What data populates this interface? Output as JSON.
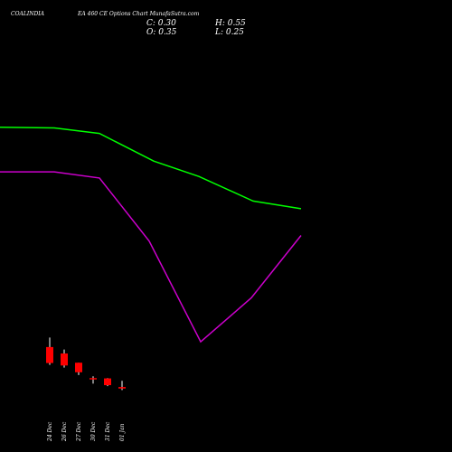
{
  "header": {
    "symbol": "COALINDIA",
    "description": "EA 460  CE Options  Chart MunafaSutra.com",
    "close": "C: 0.30",
    "high": "H: 0.55",
    "open": "O: 0.35",
    "low": "L: 0.25"
  },
  "chart_data": {
    "type": "candlestick",
    "categories": [
      "24 Dec",
      "26 Dec",
      "27 Dec",
      "30 Dec",
      "31 Dec",
      "01 Jan"
    ],
    "candles": [
      {
        "open": 1.65,
        "high": 1.96,
        "low": 1.07,
        "close": 1.13
      },
      {
        "open": 1.44,
        "high": 1.57,
        "low": 0.98,
        "close": 1.05
      },
      {
        "open": 1.14,
        "high": 1.14,
        "low": 0.74,
        "close": 0.83
      },
      {
        "open": 0.64,
        "high": 0.7,
        "low": 0.46,
        "close": 0.63
      },
      {
        "open": 0.63,
        "high": 0.64,
        "low": 0.38,
        "close": 0.41
      },
      {
        "open": 0.35,
        "high": 0.55,
        "low": 0.25,
        "close": 0.3
      }
    ],
    "series": [
      {
        "color": "#00ff00",
        "x": [
          0,
          60,
          110,
          170,
          220,
          280,
          333
        ],
        "values": [
          8.8,
          8.78,
          8.6,
          7.7,
          7.2,
          6.4,
          6.15
        ]
      },
      {
        "color": "#cc00cc",
        "x": [
          0,
          60,
          110,
          165,
          222,
          278,
          333
        ],
        "values": [
          7.35,
          7.35,
          7.15,
          5.1,
          1.82,
          3.25,
          5.28
        ]
      }
    ],
    "ma_x_range": [
      0,
      333
    ],
    "colors": {
      "bear": "#ff0000",
      "bull": "#00ff00",
      "wick": "#ffffff"
    }
  }
}
